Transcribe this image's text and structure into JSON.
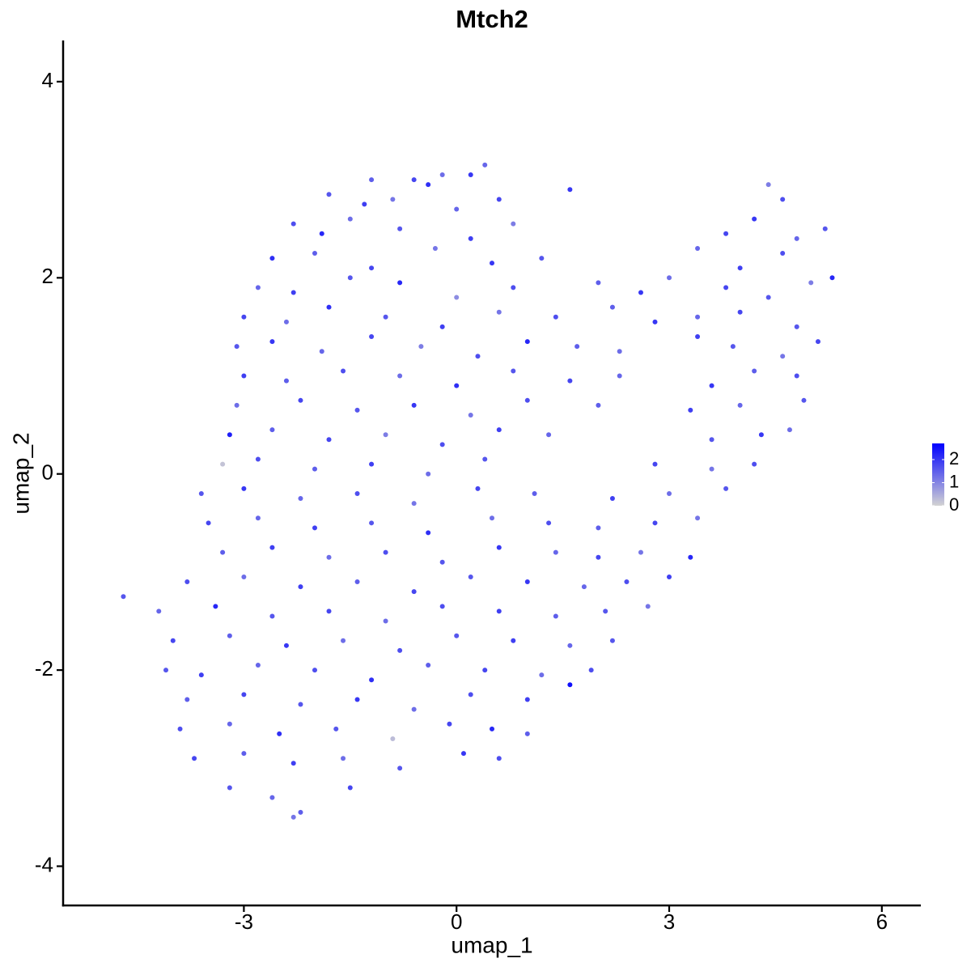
{
  "chart_data": {
    "type": "scatter",
    "title": "Mtch2",
    "x_label": "umap_1",
    "y_label": "umap_2",
    "xlim": [
      -5.55,
      6.55
    ],
    "ylim": [
      -4.4,
      4.42
    ],
    "xticks": [
      -3,
      0,
      3,
      6
    ],
    "yticks": [
      -4,
      -2,
      0,
      2,
      4
    ],
    "color_scale": {
      "low": "#d3d3d3",
      "high": "#0000ff",
      "lim": [
        0,
        2.7
      ],
      "ticks": [
        0,
        1,
        2
      ]
    },
    "x": [
      -1.2,
      -0.6,
      -0.2,
      0.2,
      0.4,
      -1.8,
      -1.3,
      -0.9,
      -0.4,
      0.0,
      0.6,
      1.6,
      4.4,
      4.6,
      -2.3,
      -1.9,
      -1.5,
      -0.8,
      0.2,
      0.8,
      3.8,
      4.2,
      4.8,
      5.2,
      -2.6,
      -2.0,
      -1.2,
      -0.3,
      0.5,
      1.2,
      3.4,
      4.0,
      4.6,
      5.3,
      -2.8,
      -2.3,
      -1.5,
      -0.8,
      0,
      0.8,
      2.0,
      2.6,
      3.0,
      3.8,
      4.4,
      5.0,
      -3.0,
      -2.4,
      -1.8,
      -1.0,
      -0.2,
      0.6,
      1.4,
      2.2,
      2.8,
      3.4,
      4.0,
      4.8,
      -3.1,
      -2.6,
      -1.9,
      -1.2,
      -0.5,
      0.3,
      1.0,
      1.7,
      2.3,
      3.4,
      3.9,
      4.6,
      5.1,
      -3.0,
      -2.4,
      -1.6,
      -0.8,
      0,
      0.8,
      1.6,
      2.3,
      3.6,
      4.2,
      4.8,
      -3.1,
      -2.2,
      -1.4,
      -0.6,
      0.2,
      1.0,
      2.0,
      3.3,
      4.0,
      4.9,
      -3.2,
      -2.6,
      -1.8,
      -1.0,
      -0.2,
      0.6,
      1.3,
      3.6,
      4.3,
      4.7,
      -3.3,
      -2.8,
      -2.0,
      -1.2,
      -0.4,
      0.4,
      2.8,
      3.6,
      4.2,
      -3.6,
      -3.0,
      -2.2,
      -1.4,
      -0.6,
      0.3,
      1.1,
      2.2,
      3.0,
      3.8,
      -3.5,
      -2.8,
      -2.0,
      -1.2,
      -0.4,
      0.5,
      1.3,
      2.0,
      2.8,
      3.4,
      -3.3,
      -2.6,
      -1.8,
      -1.0,
      -0.2,
      0.6,
      1.4,
      2.0,
      2.6,
      3.3,
      -3.8,
      -3.0,
      -2.2,
      -1.4,
      -0.6,
      0.2,
      1.0,
      1.8,
      2.4,
      3.0,
      -4.7,
      -4.2,
      -3.4,
      -2.6,
      -1.8,
      -1.0,
      -0.2,
      0.6,
      1.4,
      2.1,
      2.7,
      -4.0,
      -3.2,
      -2.4,
      -1.6,
      -0.8,
      0,
      0.8,
      1.6,
      2.2,
      -4.1,
      -3.6,
      -2.8,
      -2.0,
      -1.2,
      -0.4,
      0.4,
      1.2,
      1.9,
      -3.8,
      -3.0,
      -2.2,
      -1.4,
      -0.6,
      0.2,
      1.0,
      1.6,
      -3.9,
      -3.2,
      -2.5,
      -1.7,
      -0.9,
      -0.1,
      0.5,
      1.0,
      -3.7,
      -3.0,
      -2.3,
      -1.6,
      -0.8,
      0.1,
      0.6,
      -3.2,
      -2.6,
      -1.5,
      -2.3,
      -2.2
    ],
    "y": [
      3.0,
      3.0,
      3.05,
      3.05,
      3.15,
      2.85,
      2.75,
      2.8,
      2.95,
      2.7,
      2.8,
      2.9,
      2.95,
      2.8,
      2.55,
      2.45,
      2.6,
      2.5,
      2.4,
      2.55,
      2.45,
      2.6,
      2.4,
      2.5,
      2.2,
      2.25,
      2.1,
      2.3,
      2.15,
      2.2,
      2.3,
      2.1,
      2.25,
      2.0,
      1.9,
      1.85,
      2.0,
      1.95,
      1.8,
      1.9,
      1.95,
      1.85,
      2.0,
      1.9,
      1.8,
      1.95,
      1.6,
      1.55,
      1.7,
      1.6,
      1.5,
      1.65,
      1.6,
      1.7,
      1.55,
      1.6,
      1.65,
      1.5,
      1.3,
      1.35,
      1.25,
      1.4,
      1.3,
      1.2,
      1.35,
      1.3,
      1.25,
      1.4,
      1.3,
      1.2,
      1.35,
      1.0,
      0.95,
      1.05,
      1.0,
      0.9,
      1.05,
      0.95,
      1.0,
      0.9,
      1.05,
      1.0,
      0.7,
      0.75,
      0.65,
      0.7,
      0.6,
      0.75,
      0.7,
      0.65,
      0.7,
      0.75,
      0.4,
      0.45,
      0.35,
      0.4,
      0.3,
      0.45,
      0.4,
      0.35,
      0.4,
      0.45,
      0.1,
      0.15,
      0.05,
      0.1,
      0.0,
      0.15,
      0.1,
      0.05,
      0.1,
      -0.2,
      -0.15,
      -0.25,
      -0.2,
      -0.3,
      -0.15,
      -0.2,
      -0.25,
      -0.2,
      -0.15,
      -0.5,
      -0.45,
      -0.55,
      -0.5,
      -0.6,
      -0.45,
      -0.5,
      -0.55,
      -0.5,
      -0.45,
      -0.8,
      -0.75,
      -0.85,
      -0.8,
      -0.9,
      -0.75,
      -0.8,
      -0.85,
      -0.8,
      -0.85,
      -1.1,
      -1.05,
      -1.15,
      -1.1,
      -1.2,
      -1.05,
      -1.1,
      -1.15,
      -1.1,
      -1.05,
      -1.25,
      -1.4,
      -1.35,
      -1.45,
      -1.4,
      -1.5,
      -1.35,
      -1.4,
      -1.45,
      -1.4,
      -1.35,
      -1.7,
      -1.65,
      -1.75,
      -1.7,
      -1.8,
      -1.65,
      -1.7,
      -1.75,
      -1.7,
      -2.0,
      -2.05,
      -1.95,
      -2.0,
      -2.1,
      -1.95,
      -2.0,
      -2.05,
      -2.0,
      -2.3,
      -2.25,
      -2.35,
      -2.3,
      -2.4,
      -2.25,
      -2.3,
      -2.15,
      -2.6,
      -2.55,
      -2.65,
      -2.6,
      -2.7,
      -2.55,
      -2.6,
      -2.65,
      -2.9,
      -2.85,
      -2.95,
      -2.9,
      -3.0,
      -2.85,
      -2.9,
      -3.2,
      -3.3,
      -3.2,
      -3.5,
      -3.45
    ],
    "values": [
      1.5,
      1.8,
      1.3,
      2.0,
      1.4,
      1.6,
      1.9,
      1.2,
      2.1,
      1.4,
      1.8,
      2.0,
      1.1,
      1.7,
      1.7,
      2.2,
      1.3,
      1.6,
      1.9,
      1.1,
      1.8,
      2.0,
      1.4,
      1.6,
      2.1,
      1.5,
      1.8,
      1.2,
      2.0,
      1.6,
      1.4,
      1.9,
      1.7,
      2.2,
      1.4,
      1.9,
      1.6,
      2.2,
      0.9,
      1.7,
      1.5,
      2.0,
      1.3,
      1.8,
      1.6,
      1.1,
      1.8,
      1.3,
      2.1,
      1.6,
      1.9,
      1.2,
      1.7,
      1.5,
      2.0,
      1.4,
      1.8,
      1.6,
      1.6,
      2.0,
      1.4,
      1.8,
      1.1,
      1.7,
      2.2,
      1.5,
      1.3,
      1.9,
      1.6,
      1.2,
      1.8,
      1.9,
      1.5,
      1.7,
      1.3,
      2.1,
      1.6,
      1.8,
      1.4,
      2.0,
      1.5,
      1.7,
      1.3,
      1.8,
      1.6,
      2.0,
      1.2,
      1.7,
      1.5,
      1.9,
      1.4,
      1.6,
      2.3,
      1.5,
      1.8,
      1.1,
      1.7,
      1.9,
      1.4,
      1.6,
      2.0,
      1.3,
      0.2,
      1.7,
      1.5,
      1.9,
      1.3,
      1.6,
      1.8,
      1.2,
      1.7,
      1.6,
      2.0,
      1.4,
      1.7,
      1.2,
      1.8,
      1.5,
      1.9,
      1.3,
      1.6,
      1.8,
      1.4,
      1.9,
      1.6,
      2.1,
      1.3,
      1.7,
      1.5,
      1.8,
      1.2,
      1.5,
      1.9,
      1.3,
      1.7,
      1.6,
      2.0,
      1.4,
      1.8,
      1.2,
      2.2,
      1.7,
      1.3,
      1.9,
      1.5,
      1.8,
      1.6,
      2.0,
      1.4,
      1.7,
      1.9,
      1.6,
      1.4,
      2.2,
      1.6,
      1.8,
      1.3,
      1.7,
      1.9,
      1.5,
      1.6,
      1.2,
      1.8,
      1.5,
      2.0,
      1.3,
      1.7,
      1.6,
      1.9,
      1.4,
      1.6,
      1.6,
      1.9,
      1.4,
      1.7,
      2.1,
      1.5,
      1.8,
      1.3,
      1.7,
      1.5,
      1.8,
      1.6,
      2.0,
      1.3,
      1.7,
      1.9,
      2.5,
      1.7,
      1.4,
      2.1,
      1.6,
      0.3,
      1.8,
      2.2,
      1.5,
      1.8,
      1.5,
      1.9,
      1.3,
      1.6,
      2.0,
      1.7,
      1.6,
      1.4,
      1.8,
      1.2,
      1.5
    ]
  }
}
